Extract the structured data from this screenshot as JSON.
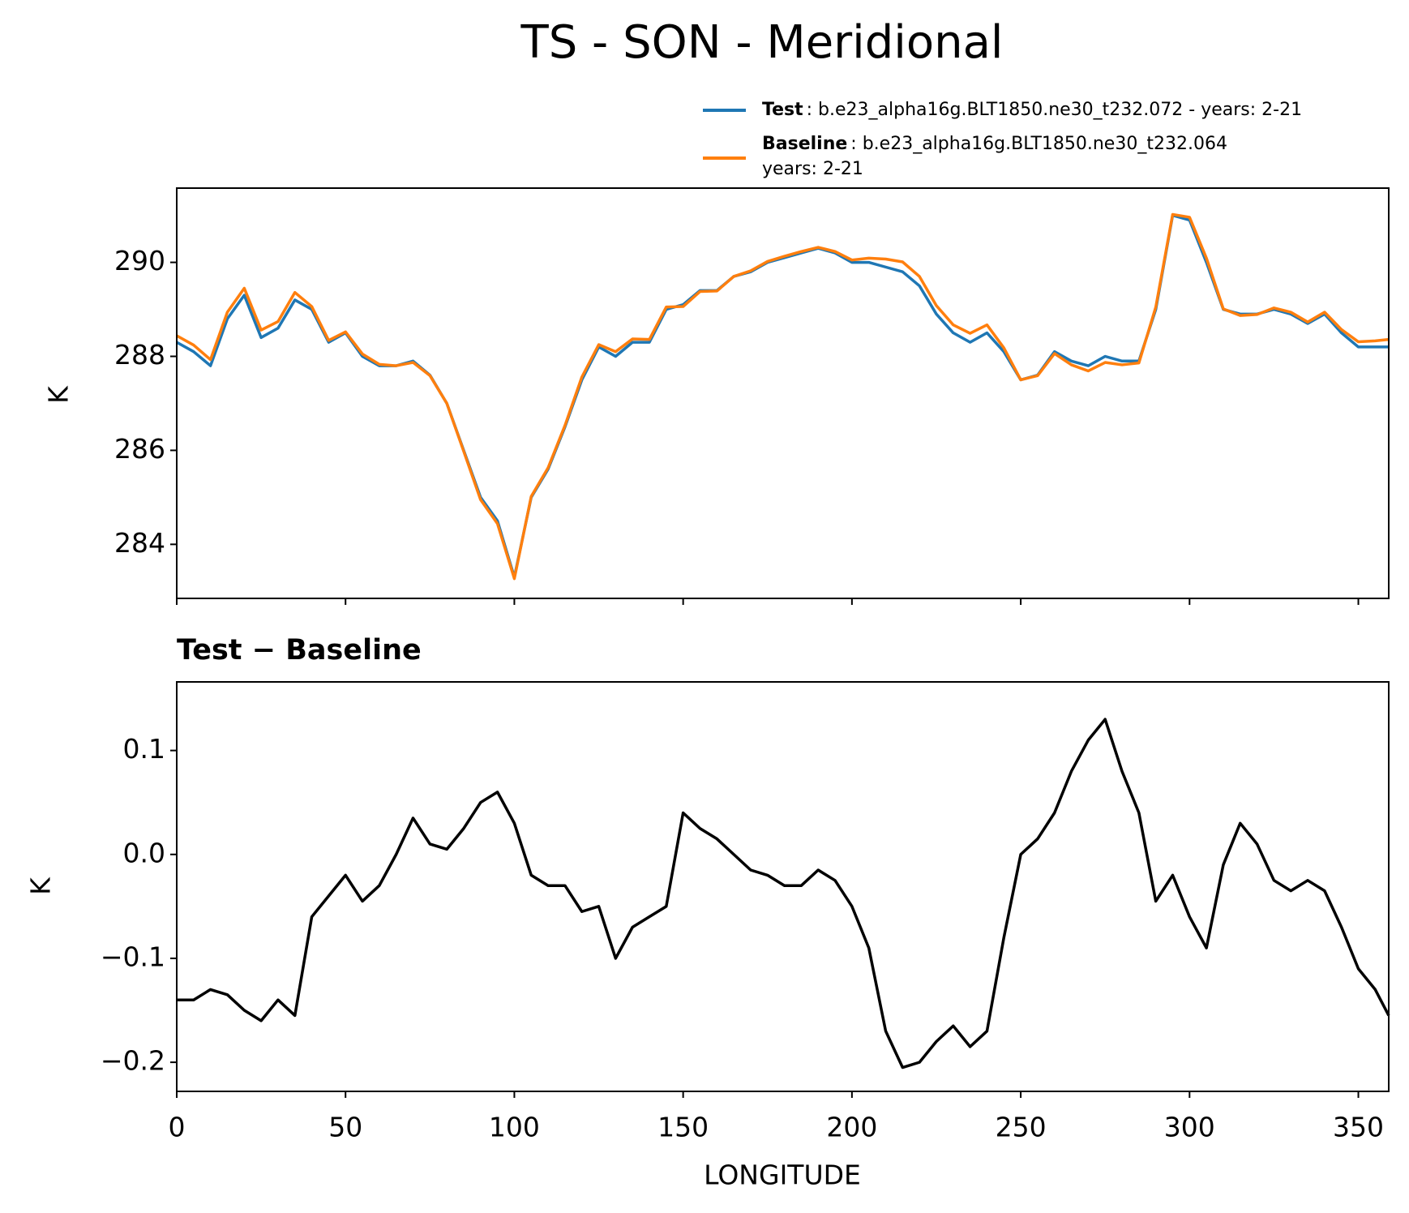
{
  "chart_data": [
    {
      "type": "line",
      "title": "TS - SON - Meridional",
      "ylabel": "K",
      "x": [
        0,
        5,
        10,
        15,
        20,
        25,
        30,
        35,
        40,
        45,
        50,
        55,
        60,
        65,
        70,
        75,
        80,
        85,
        90,
        95,
        100,
        105,
        110,
        115,
        120,
        125,
        130,
        135,
        140,
        145,
        150,
        155,
        160,
        165,
        170,
        175,
        180,
        185,
        190,
        195,
        200,
        205,
        210,
        215,
        220,
        225,
        230,
        235,
        240,
        245,
        250,
        255,
        260,
        265,
        270,
        275,
        280,
        285,
        290,
        295,
        300,
        305,
        310,
        315,
        320,
        325,
        330,
        335,
        340,
        345,
        350,
        355,
        359
      ],
      "series": [
        {
          "name": "Test",
          "description": ": b.e23_alpha16g.BLT1850.ne30_t232.072 - years: 2-21",
          "color": "#1f77b4",
          "values": [
            288.3,
            288.1,
            287.8,
            288.8,
            289.3,
            288.4,
            288.6,
            289.2,
            289.0,
            288.3,
            288.5,
            288.0,
            287.8,
            287.8,
            287.9,
            287.6,
            287.0,
            286.0,
            285.0,
            284.5,
            283.3,
            285.0,
            285.6,
            286.5,
            287.5,
            288.2,
            288.0,
            288.3,
            288.3,
            289.0,
            289.1,
            289.4,
            289.4,
            289.7,
            289.8,
            290.0,
            290.1,
            290.2,
            290.3,
            290.2,
            290.0,
            290.0,
            289.9,
            289.8,
            289.5,
            288.9,
            288.5,
            288.3,
            288.5,
            288.1,
            287.5,
            287.6,
            288.1,
            287.9,
            287.8,
            288.0,
            287.9,
            287.9,
            289.0,
            291.0,
            290.9,
            290.0,
            289.0,
            288.9,
            288.9,
            289.0,
            288.9,
            288.7,
            288.9,
            288.5,
            288.2,
            288.2,
            288.2
          ]
        },
        {
          "name": "Baseline",
          "description_lines": [
            ": b.e23_alpha16g.BLT1850.ne30_t232.064",
            "years: 2-21"
          ],
          "color": "#ff7f0e",
          "values": [
            288.44,
            288.24,
            287.93,
            288.94,
            289.45,
            288.56,
            288.74,
            289.36,
            289.06,
            288.34,
            288.52,
            288.05,
            287.83,
            287.8,
            287.87,
            287.59,
            287.0,
            285.98,
            284.95,
            284.44,
            283.27,
            285.02,
            285.63,
            286.53,
            287.56,
            288.25,
            288.1,
            288.37,
            288.36,
            289.05,
            289.06,
            289.38,
            289.39,
            289.7,
            289.82,
            290.02,
            290.13,
            290.23,
            290.32,
            290.23,
            290.05,
            290.09,
            290.07,
            290.01,
            289.7,
            289.08,
            288.67,
            288.49,
            288.67,
            288.18,
            287.5,
            287.59,
            288.06,
            287.82,
            287.69,
            287.87,
            287.82,
            287.86,
            289.05,
            291.02,
            290.96,
            290.09,
            289.01,
            288.87,
            288.89,
            289.03,
            288.94,
            288.73,
            288.94,
            288.57,
            288.31,
            288.33,
            288.36
          ]
        }
      ],
      "xlim": [
        0,
        359
      ],
      "xticks": [
        0,
        50,
        100,
        150,
        200,
        250,
        300,
        350
      ],
      "ylim": [
        282.85,
        291.58
      ],
      "yticks": [
        284,
        286,
        288,
        290
      ]
    },
    {
      "type": "line",
      "title": "Test − Baseline",
      "ylabel": "K",
      "xlabel": "LONGITUDE",
      "x": [
        0,
        5,
        10,
        15,
        20,
        25,
        30,
        35,
        40,
        45,
        50,
        55,
        60,
        65,
        70,
        75,
        80,
        85,
        90,
        95,
        100,
        105,
        110,
        115,
        120,
        125,
        130,
        135,
        140,
        145,
        150,
        155,
        160,
        165,
        170,
        175,
        180,
        185,
        190,
        195,
        200,
        205,
        210,
        215,
        220,
        225,
        230,
        235,
        240,
        245,
        250,
        255,
        260,
        265,
        270,
        275,
        280,
        285,
        290,
        295,
        300,
        305,
        310,
        315,
        320,
        325,
        330,
        335,
        340,
        345,
        350,
        355,
        359
      ],
      "series": [
        {
          "color": "#000000",
          "values": [
            -0.14,
            -0.14,
            -0.13,
            -0.135,
            -0.15,
            -0.16,
            -0.14,
            -0.155,
            -0.06,
            -0.04,
            -0.02,
            -0.045,
            -0.03,
            0.0,
            0.035,
            0.01,
            0.005,
            0.025,
            0.05,
            0.06,
            0.03,
            -0.02,
            -0.03,
            -0.03,
            -0.055,
            -0.05,
            -0.1,
            -0.07,
            -0.06,
            -0.05,
            0.04,
            0.025,
            0.015,
            0.0,
            -0.015,
            -0.02,
            -0.03,
            -0.03,
            -0.015,
            -0.025,
            -0.05,
            -0.09,
            -0.17,
            -0.205,
            -0.2,
            -0.18,
            -0.165,
            -0.185,
            -0.17,
            -0.08,
            0.0,
            0.015,
            0.04,
            0.08,
            0.11,
            0.13,
            0.08,
            0.04,
            -0.045,
            -0.02,
            -0.06,
            -0.09,
            -0.01,
            0.03,
            0.01,
            -0.025,
            -0.035,
            -0.025,
            -0.035,
            -0.07,
            -0.11,
            -0.13,
            -0.155
          ]
        }
      ],
      "xlim": [
        0,
        359
      ],
      "xticks": [
        0,
        50,
        100,
        150,
        200,
        250,
        300,
        350
      ],
      "ylim": [
        -0.228,
        0.166
      ],
      "yticks": [
        {
          "value": -0.2,
          "label": "−0.2"
        },
        {
          "value": -0.1,
          "label": "−0.1"
        },
        {
          "value": 0,
          "label": "0.0"
        },
        0.1
      ]
    }
  ]
}
